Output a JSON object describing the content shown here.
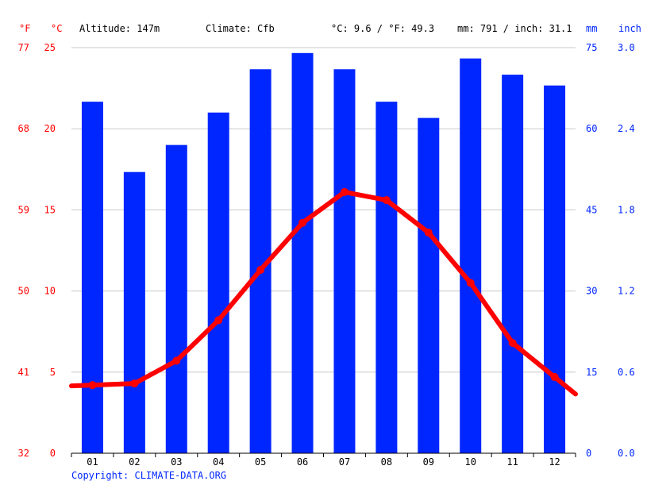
{
  "header": {
    "unit_f": "°F",
    "unit_c": "°C",
    "altitude": "Altitude: 147m",
    "climate": "Climate: Cfb",
    "temp_avg": "°C: 9.6 / °F: 49.3",
    "precip_total": "mm: 791 / inch: 31.1",
    "unit_mm": "mm",
    "unit_inch": "inch"
  },
  "copyright": "Copyright: CLIMATE-DATA.ORG",
  "colors": {
    "temperature": "#ff0000",
    "precipitation": "#0026ff",
    "grid": "#c8c8c8",
    "axis": "#000000",
    "text": "#000000"
  },
  "chart_data": {
    "type": "bar+line",
    "title": "",
    "categories": [
      "01",
      "02",
      "03",
      "04",
      "05",
      "06",
      "07",
      "08",
      "09",
      "10",
      "11",
      "12"
    ],
    "series": [
      {
        "name": "",
        "type": "bar",
        "axis": "right-mm",
        "values": [
          65,
          52,
          57,
          63,
          71,
          74,
          71,
          65,
          62,
          73,
          70,
          68
        ]
      },
      {
        "name": "",
        "type": "line",
        "axis": "left-celsius",
        "values": [
          4.2,
          4.3,
          5.7,
          8.2,
          11.3,
          14.2,
          16.1,
          15.6,
          13.6,
          10.5,
          6.8,
          4.7
        ]
      }
    ],
    "axes": {
      "left_celsius": {
        "ylim": [
          0,
          25
        ],
        "ticks": [
          "0",
          "5",
          "10",
          "15",
          "20",
          "25"
        ]
      },
      "left_fahrenheit": {
        "ticks": [
          "32",
          "41",
          "50",
          "59",
          "68",
          "77"
        ]
      },
      "right_mm": {
        "ylim": [
          0,
          75
        ],
        "ticks": [
          "0",
          "15",
          "30",
          "45",
          "60",
          "75"
        ]
      },
      "right_inch": {
        "ticks": [
          "0.0",
          "0.6",
          "1.2",
          "1.8",
          "2.4",
          "3.0"
        ]
      }
    },
    "grid": true,
    "legend": "none"
  }
}
